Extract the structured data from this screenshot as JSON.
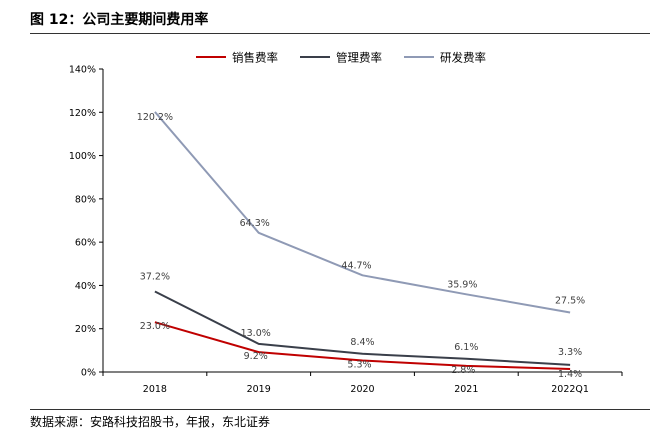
{
  "figure": {
    "title": "图 12：公司主要期间费用率",
    "source": "数据来源：安路科技招股书，年报，东北证券"
  },
  "colors": {
    "sales": "#c00000",
    "management": "#3a3f4a",
    "rnd": "#8f9ab5",
    "axis": "#000000"
  },
  "chart_data": {
    "type": "line",
    "title": "公司主要期间费用率",
    "categories": [
      "2018",
      "2019",
      "2020",
      "2021",
      "2022Q1"
    ],
    "y_ticks": [
      "0%",
      "20%",
      "40%",
      "60%",
      "80%",
      "100%",
      "120%",
      "140%"
    ],
    "ylim": [
      0,
      140
    ],
    "legend_position": "top",
    "grid": false,
    "series": [
      {
        "key": "sales",
        "name": "销售费率",
        "values": [
          23.0,
          9.2,
          5.3,
          2.8,
          1.4
        ],
        "labels": [
          "23.0%",
          "9.2%",
          "5.3%",
          "2.8%",
          "1.4%"
        ]
      },
      {
        "key": "management",
        "name": "管理费率",
        "values": [
          37.2,
          13.0,
          8.4,
          6.1,
          3.3
        ],
        "labels": [
          "37.2%",
          "13.0%",
          "8.4%",
          "6.1%",
          "3.3%"
        ]
      },
      {
        "key": "rnd",
        "name": "研发费率",
        "values": [
          120.2,
          64.3,
          44.7,
          35.9,
          27.5
        ],
        "labels": [
          "120.2%",
          "64.3%",
          "44.7%",
          "35.9%",
          "27.5%"
        ]
      }
    ]
  }
}
